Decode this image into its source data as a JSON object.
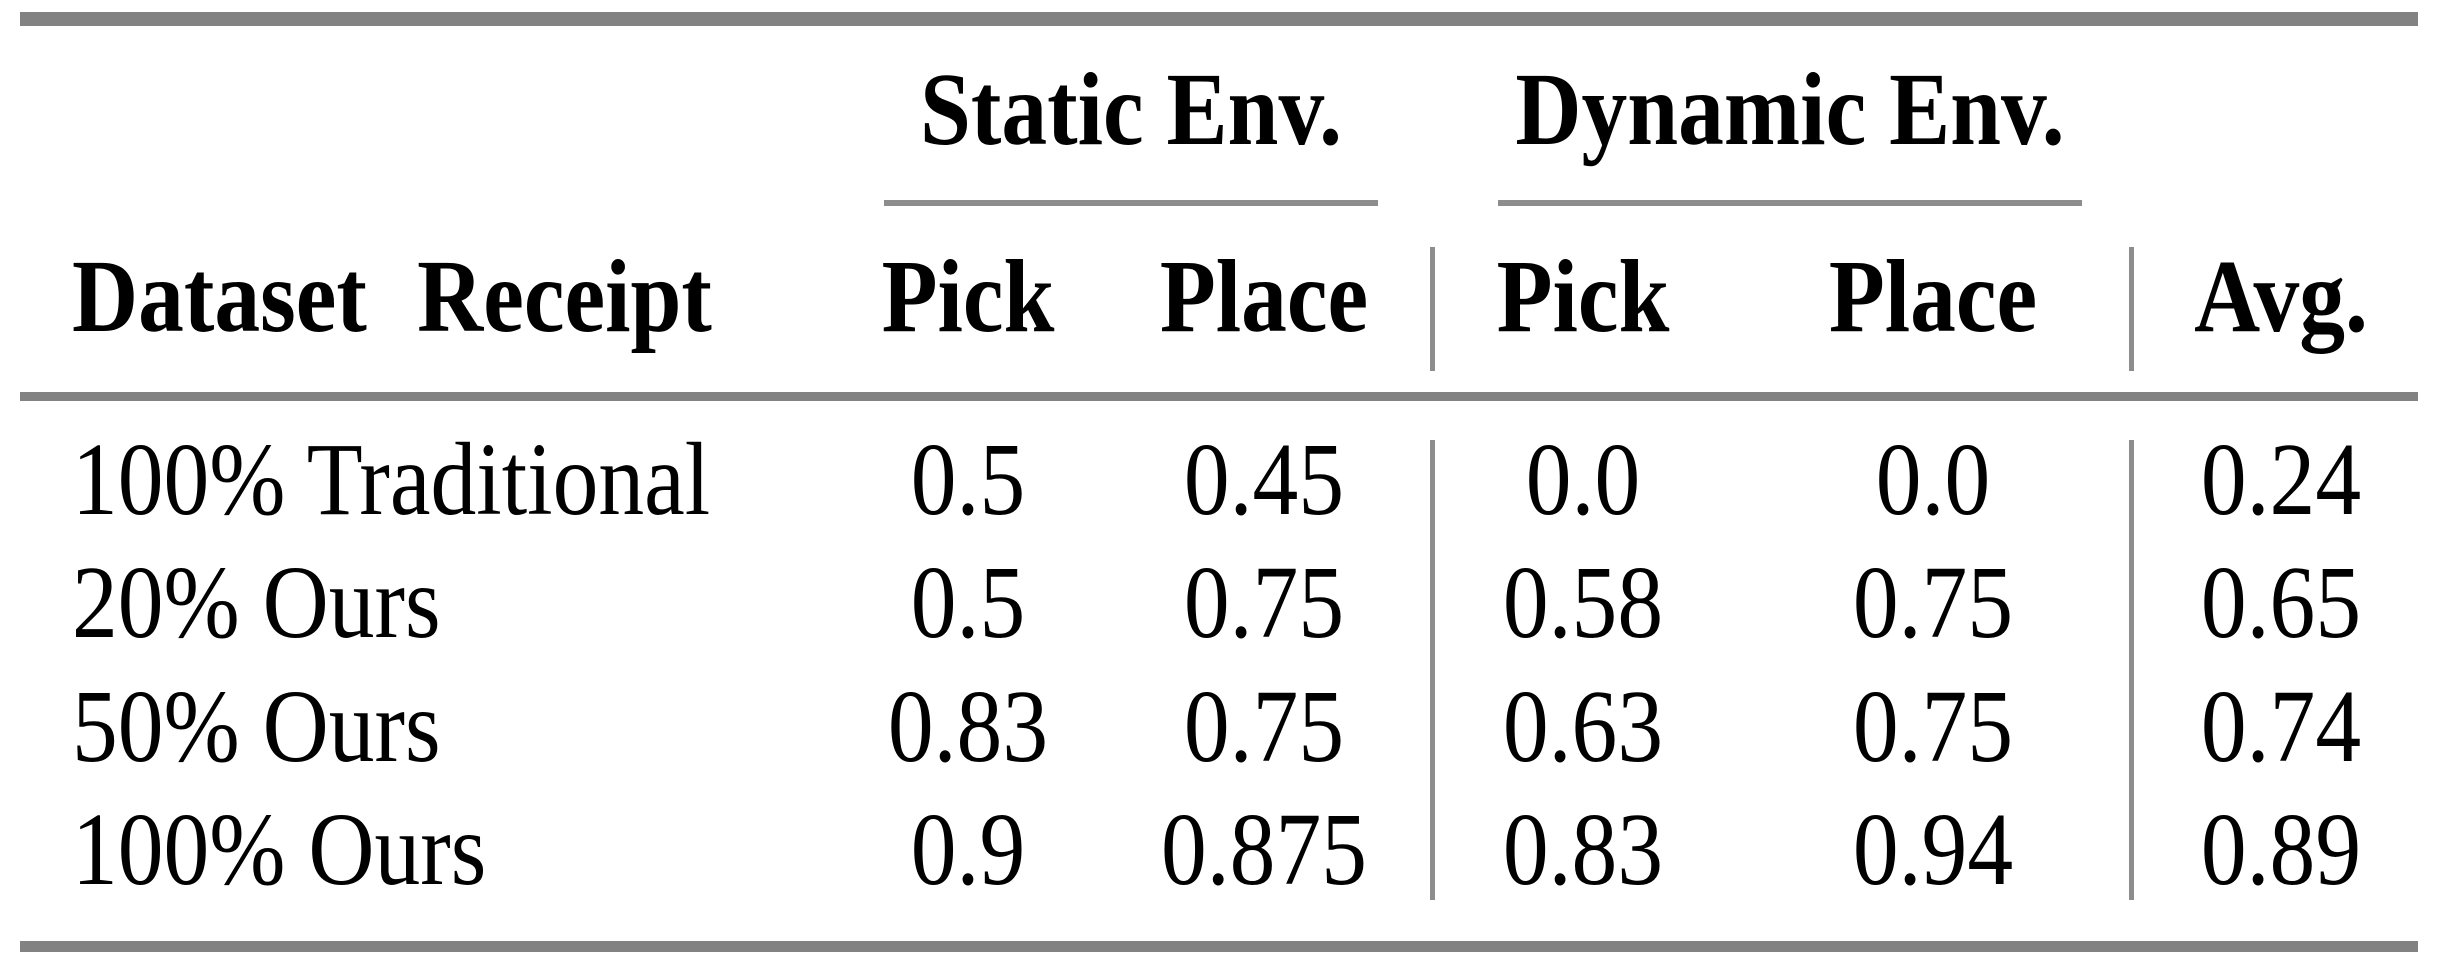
{
  "table": {
    "groups": [
      {
        "label": "Static Env."
      },
      {
        "label": "Dynamic Env."
      }
    ],
    "headers": {
      "dataset": "Dataset Receipt",
      "static_pick": "Pick",
      "static_place": "Place",
      "dynamic_pick": "Pick",
      "dynamic_place": "Place",
      "avg": "Avg."
    },
    "rows": [
      {
        "label": "100% Traditional",
        "static_pick": "0.5",
        "static_place": "0.45",
        "dynamic_pick": "0.0",
        "dynamic_place": "0.0",
        "avg": "0.24"
      },
      {
        "label": "20% Ours",
        "static_pick": "0.5",
        "static_place": "0.75",
        "dynamic_pick": "0.58",
        "dynamic_place": "0.75",
        "avg": "0.65"
      },
      {
        "label": "50% Ours",
        "static_pick": "0.83",
        "static_place": "0.75",
        "dynamic_pick": "0.63",
        "dynamic_place": "0.75",
        "avg": "0.74"
      },
      {
        "label": "100% Ours",
        "static_pick": "0.9",
        "static_place": "0.875",
        "dynamic_pick": "0.83",
        "dynamic_place": "0.94",
        "avg": "0.89"
      }
    ]
  },
  "chart_data": {
    "type": "table",
    "columns": [
      "Dataset Receipt",
      "Static Env. Pick",
      "Static Env. Place",
      "Dynamic Env. Pick",
      "Dynamic Env. Place",
      "Avg."
    ],
    "rows": [
      [
        "100% Traditional",
        0.5,
        0.45,
        0.0,
        0.0,
        0.24
      ],
      [
        "20% Ours",
        0.5,
        0.75,
        0.58,
        0.75,
        0.65
      ],
      [
        "50% Ours",
        0.83,
        0.75,
        0.63,
        0.75,
        0.74
      ],
      [
        "100% Ours",
        0.9,
        0.875,
        0.83,
        0.94,
        0.89
      ]
    ]
  },
  "colors": {
    "rule_gray": "#828282",
    "text": "#000000",
    "background": "#ffffff"
  }
}
